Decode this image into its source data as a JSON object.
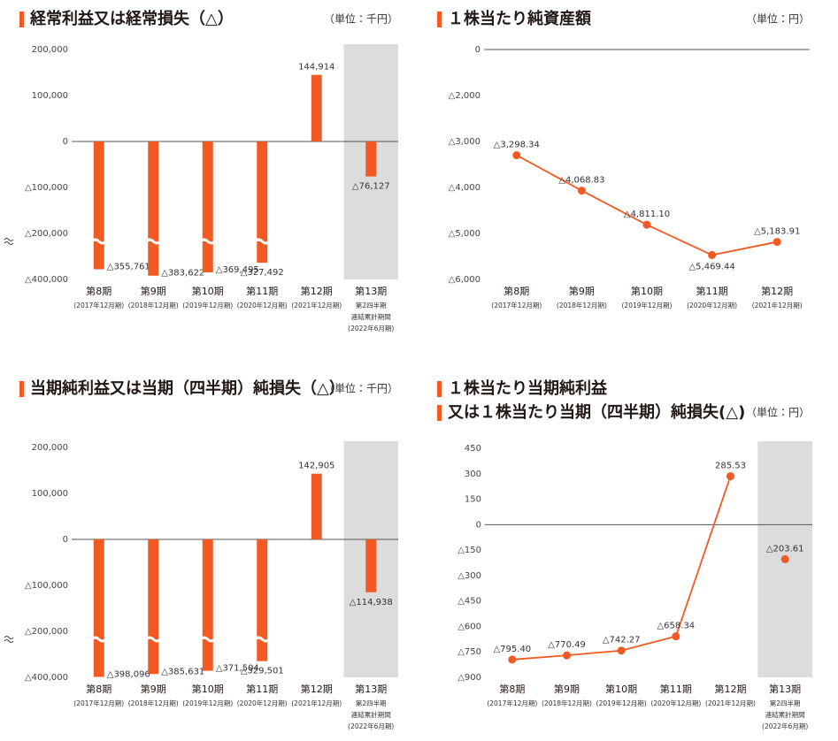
{
  "chart_data": [
    {
      "type": "bar",
      "title": "経常利益又は経常損失（△）",
      "unit": "（単位：千円）",
      "categories": [
        "第8期",
        "第9期",
        "第10期",
        "第11期",
        "第12期",
        "第13期"
      ],
      "category_notes": [
        [
          "(2017年12月期)"
        ],
        [
          "(2018年12月期)"
        ],
        [
          "(2019年12月期)"
        ],
        [
          "(2020年12月期)"
        ],
        [
          "(2021年12月期)"
        ],
        [
          "第2四半期",
          "連結累計期間",
          "(2022年6月期)"
        ]
      ],
      "values": [
        -355761,
        -383622,
        -369495,
        -327492,
        144914,
        -76127
      ],
      "value_labels": [
        "△355,761",
        "△383,622",
        "△369,495",
        "△327,492",
        "144,914",
        "△76,127"
      ],
      "color": "#f15a22",
      "ylim": [
        -400000,
        200000
      ],
      "yticks": [
        {
          "value": -400000,
          "label": "△400,000"
        },
        {
          "value": -200000,
          "label": "△200,000"
        },
        {
          "value": -100000,
          "label": "△100,000"
        },
        0,
        {
          "value": 100000,
          "label": "100,000"
        },
        {
          "value": 200000,
          "label": "200,000"
        }
      ],
      "axis_break": true,
      "zero_line": true,
      "shaded_categories": [
        5
      ]
    },
    {
      "type": "line",
      "title": "１株当たり純資産額",
      "unit": "（単位：円）",
      "categories": [
        "第8期",
        "第9期",
        "第10期",
        "第11期",
        "第12期"
      ],
      "category_notes": [
        [
          "(2017年12月期)"
        ],
        [
          "(2018年12月期)"
        ],
        [
          "(2019年12月期)"
        ],
        [
          "(2020年12月期)"
        ],
        [
          "(2021年12月期)"
        ]
      ],
      "values": [
        -3298.34,
        -4068.83,
        -4811.1,
        -5469.44,
        -5183.91
      ],
      "value_labels": [
        "△3,298.34",
        "△4,068.83",
        "△4,811.10",
        "△5,469.44",
        "△5,183.91"
      ],
      "color": "#f15a22",
      "ylim": [
        -6000,
        0
      ],
      "yticks": [
        {
          "value": -6000,
          "label": "△6,000"
        },
        {
          "value": -5000,
          "label": "△5,000"
        },
        {
          "value": -4000,
          "label": "△4,000"
        },
        {
          "value": -3000,
          "label": "△3,000"
        },
        {
          "value": -2000,
          "label": "△2,000"
        },
        0
      ],
      "zero_line": true
    },
    {
      "type": "bar",
      "title": "当期純利益又は当期（四半期）純損失（△）",
      "unit": "（単位：千円）",
      "categories": [
        "第8期",
        "第9期",
        "第10期",
        "第11期",
        "第12期",
        "第13期"
      ],
      "category_notes": [
        [
          "(2017年12月期)"
        ],
        [
          "(2018年12月期)"
        ],
        [
          "(2019年12月期)"
        ],
        [
          "(2020年12月期)"
        ],
        [
          "(2021年12月期)"
        ],
        [
          "第2四半期",
          "連結累計期間",
          "(2022年6月期)"
        ]
      ],
      "values": [
        -398096,
        -385631,
        -371504,
        -329501,
        142905,
        -114938
      ],
      "value_labels": [
        "△398,096",
        "△385,631",
        "△371,504",
        "△329,501",
        "142,905",
        "△114,938"
      ],
      "color": "#f15a22",
      "ylim": [
        -400000,
        200000
      ],
      "yticks": [
        {
          "value": -400000,
          "label": "△400,000"
        },
        {
          "value": -200000,
          "label": "△200,000"
        },
        {
          "value": -100000,
          "label": "△100,000"
        },
        0,
        {
          "value": 100000,
          "label": "100,000"
        },
        {
          "value": 200000,
          "label": "200,000"
        }
      ],
      "axis_break": true,
      "zero_line": true,
      "shaded_categories": [
        5
      ]
    },
    {
      "type": "line",
      "title": [
        "１株当たり当期純利益",
        "又は１株当たり当期（四半期）純損失(△)"
      ],
      "unit": "（単位：円）",
      "categories": [
        "第8期",
        "第9期",
        "第10期",
        "第11期",
        "第12期",
        "第13期"
      ],
      "category_notes": [
        [
          "(2017年12月期)"
        ],
        [
          "(2018年12月期)"
        ],
        [
          "(2019年12月期)"
        ],
        [
          "(2020年12月期)"
        ],
        [
          "(2021年12月期)"
        ],
        [
          "第2四半期",
          "連結累計期間",
          "(2022年6月期)"
        ]
      ],
      "series": [
        {
          "color": "#f15a22",
          "values": [
            -795.4,
            -770.49,
            -742.27,
            -658.34,
            285.53,
            null
          ],
          "value_labels": [
            "△795.40",
            "△770.49",
            "△742.27",
            "△658.34",
            "285.53",
            null
          ]
        },
        {
          "color": "#f15a22",
          "values": [
            null,
            null,
            null,
            null,
            null,
            -203.61
          ],
          "value_labels": [
            null,
            null,
            null,
            null,
            null,
            "△203.61"
          ]
        }
      ],
      "ylim": [
        -900,
        450
      ],
      "yticks": [
        {
          "value": -900,
          "label": "△900"
        },
        {
          "value": -750,
          "label": "△750"
        },
        {
          "value": -600,
          "label": "△600"
        },
        {
          "value": -450,
          "label": "△450"
        },
        {
          "value": -300,
          "label": "△300"
        },
        {
          "value": -150,
          "label": "△150"
        },
        0,
        150,
        300,
        450
      ],
      "zero_line": true,
      "shaded_categories": [
        5
      ]
    }
  ]
}
